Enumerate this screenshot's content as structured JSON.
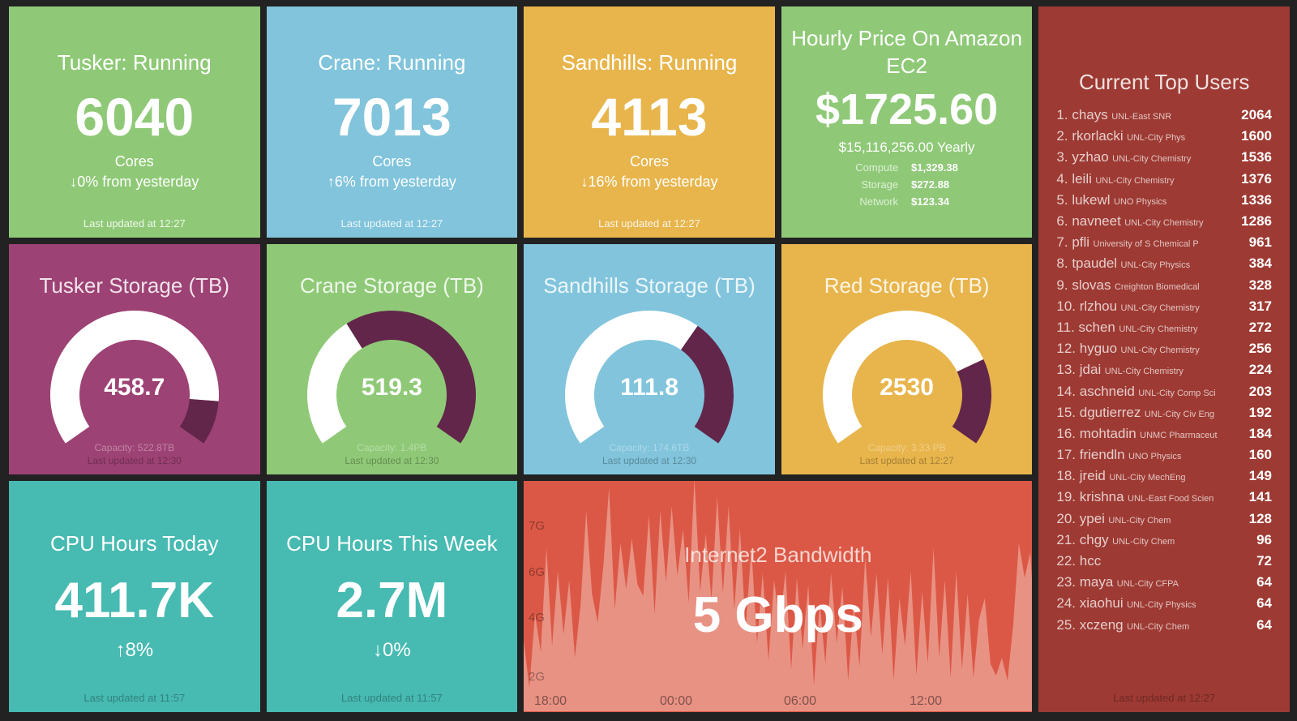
{
  "colors": {
    "green": "#8fc977",
    "blue": "#81c4dc",
    "orange": "#e8b54c",
    "purple": "#9d4274",
    "teal": "#47bab2",
    "red": "#dc5846",
    "dark_red": "#9d3a33",
    "gauge_fill": "#ffffff",
    "gauge_rest": "#62264a"
  },
  "clusters": [
    {
      "title": "Tusker: Running",
      "value": "6040",
      "unit": "Cores",
      "arrow": "↓",
      "change": "0% from yesterday",
      "updated": "Last updated at 12:27"
    },
    {
      "title": "Crane: Running",
      "value": "7013",
      "unit": "Cores",
      "arrow": "↑",
      "change": "6% from yesterday",
      "updated": "Last updated at 12:27"
    },
    {
      "title": "Sandhills: Running",
      "value": "4113",
      "unit": "Cores",
      "arrow": "↓",
      "change": "16% from yesterday",
      "updated": "Last updated at 12:27"
    }
  ],
  "price": {
    "title": "Hourly Price On Amazon EC2",
    "value": "$1725.60",
    "yearly": "$15,116,256.00 Yearly",
    "items": [
      {
        "label": "Compute",
        "value": "$1,329.38"
      },
      {
        "label": "Storage",
        "value": "$272.88"
      },
      {
        "label": "Network",
        "value": "$123.34"
      }
    ]
  },
  "storage": [
    {
      "title": "Tusker Storage (TB)",
      "value": "458.7",
      "fraction": 0.877,
      "capacity": "Capacity: 522.8TB",
      "updated": "Last updated at 12:30"
    },
    {
      "title": "Crane Storage (TB)",
      "value": "519.3",
      "fraction": 0.371,
      "capacity": "Capacity: 1.4PB",
      "updated": "Last updated at 12:30"
    },
    {
      "title": "Sandhills Storage (TB)",
      "value": "111.8",
      "fraction": 0.64,
      "capacity": "Capacity: 174.6TB",
      "updated": "Last updated at 12:30"
    },
    {
      "title": "Red Storage (TB)",
      "value": "2530",
      "fraction": 0.76,
      "capacity": "Capacity: 3.33 PB",
      "updated": "Last updated at 12:27"
    }
  ],
  "cpu": [
    {
      "title": "CPU Hours Today",
      "value": "411.7K",
      "arrow": "↑",
      "change": "8%",
      "updated": "Last updated at 11:57"
    },
    {
      "title": "CPU Hours This Week",
      "value": "2.7M",
      "arrow": "↓",
      "change": "0%",
      "updated": "Last updated at 11:57"
    }
  ],
  "bandwidth": {
    "title": "Internet2 Bandwidth",
    "value": "5 Gbps"
  },
  "chart_data": {
    "type": "area",
    "title": "Internet2 Bandwidth",
    "yticks": [
      "2G",
      "4G",
      "6G",
      "7G"
    ],
    "xticks": [
      "18:00",
      "00:00",
      "06:00",
      "12:00"
    ],
    "ylabel": "",
    "xlabel": "",
    "values": [
      3.2,
      1.5,
      4.1,
      2.8,
      6.5,
      3.0,
      6.0,
      3.4,
      5.6,
      2.6,
      4.5,
      7.3,
      5.0,
      3.8,
      6.1,
      7.8,
      4.3,
      6.6,
      5.2,
      6.7,
      5.4,
      4.9,
      7.2,
      4.1,
      7.3,
      5.5,
      7.4,
      5.8,
      6.9,
      4.6,
      8.0,
      5.1,
      6.8,
      4.7,
      7.6,
      5.0,
      7.4,
      4.3,
      6.9,
      3.6,
      6.5,
      3.1,
      5.9,
      2.5,
      5.6,
      3.7,
      6.0,
      2.2,
      5.7,
      2.9,
      5.4,
      1.6,
      4.6,
      2.4,
      5.9,
      3.1,
      5.3,
      1.8,
      4.5,
      2.3,
      6.3,
      3.3,
      5.9,
      2.7,
      5.7,
      1.8,
      4.8,
      3.0,
      6.0,
      2.0,
      5.1,
      2.4,
      6.5,
      2.6,
      5.6,
      1.9,
      6.0,
      2.2,
      5.0,
      1.9,
      3.9,
      4.8,
      2.4,
      2.0,
      2.6,
      1.8,
      3.7,
      6.6,
      5.7,
      6.4,
      3.0
    ]
  },
  "users": {
    "title": "Current Top Users",
    "updated": "Last updated at 12:27",
    "items": [
      {
        "rank": "1.",
        "name": "chays",
        "org": "UNL-East SNR",
        "value": "2064"
      },
      {
        "rank": "2.",
        "name": "rkorlacki",
        "org": "UNL-City Phys",
        "value": "1600"
      },
      {
        "rank": "3.",
        "name": "yzhao",
        "org": "UNL-City Chemistry",
        "value": "1536"
      },
      {
        "rank": "4.",
        "name": "leili",
        "org": "UNL-City Chemistry",
        "value": "1376"
      },
      {
        "rank": "5.",
        "name": "lukewl",
        "org": "UNO Physics",
        "value": "1336"
      },
      {
        "rank": "6.",
        "name": "navneet",
        "org": "UNL-City Chemistry",
        "value": "1286"
      },
      {
        "rank": "7.",
        "name": "pfli",
        "org": "University of S Chemical P",
        "value": "961"
      },
      {
        "rank": "8.",
        "name": "tpaudel",
        "org": "UNL-City Physics",
        "value": "384"
      },
      {
        "rank": "9.",
        "name": "slovas",
        "org": "Creighton Biomedical",
        "value": "328"
      },
      {
        "rank": "10.",
        "name": "rlzhou",
        "org": "UNL-City Chemistry",
        "value": "317"
      },
      {
        "rank": "11.",
        "name": "schen",
        "org": "UNL-City Chemistry",
        "value": "272"
      },
      {
        "rank": "12.",
        "name": "hyguo",
        "org": "UNL-City Chemistry",
        "value": "256"
      },
      {
        "rank": "13.",
        "name": "jdai",
        "org": "UNL-City Chemistry",
        "value": "224"
      },
      {
        "rank": "14.",
        "name": "aschneid",
        "org": "UNL-City Comp Sci",
        "value": "203"
      },
      {
        "rank": "15.",
        "name": "dgutierrez",
        "org": "UNL-City Civ Eng",
        "value": "192"
      },
      {
        "rank": "16.",
        "name": "mohtadin",
        "org": "UNMC Pharmaceut",
        "value": "184"
      },
      {
        "rank": "17.",
        "name": "friendln",
        "org": "UNO Physics",
        "value": "160"
      },
      {
        "rank": "18.",
        "name": "jreid",
        "org": "UNL-City MechEng",
        "value": "149"
      },
      {
        "rank": "19.",
        "name": "krishna",
        "org": "UNL-East Food Scien",
        "value": "141"
      },
      {
        "rank": "20.",
        "name": "ypei",
        "org": "UNL-City Chem",
        "value": "128"
      },
      {
        "rank": "21.",
        "name": "chgy",
        "org": "UNL-City Chem",
        "value": "96"
      },
      {
        "rank": "22.",
        "name": "hcc",
        "org": "",
        "value": "72"
      },
      {
        "rank": "23.",
        "name": "maya",
        "org": "UNL-City CFPA",
        "value": "64"
      },
      {
        "rank": "24.",
        "name": "xiaohui",
        "org": "UNL-City Physics",
        "value": "64"
      },
      {
        "rank": "25.",
        "name": "xczeng",
        "org": "UNL-City Chem",
        "value": "64"
      }
    ]
  }
}
